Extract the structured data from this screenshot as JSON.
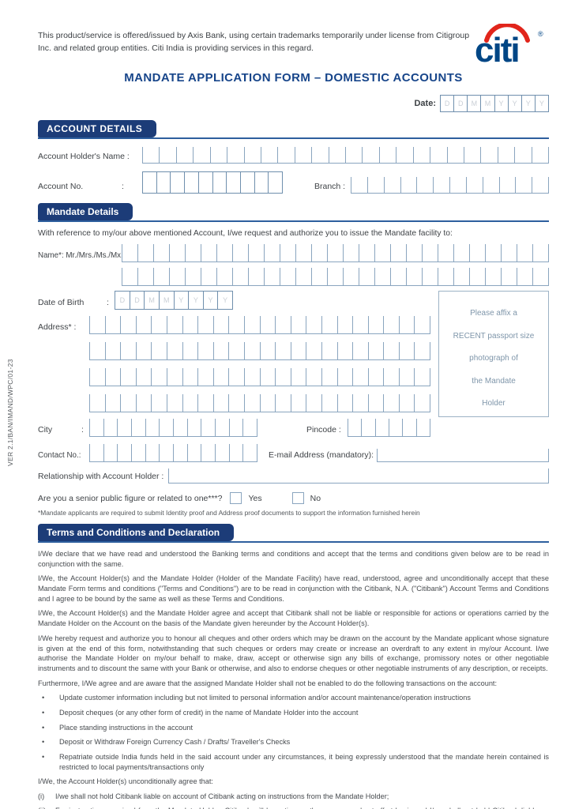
{
  "header": {
    "disclaimer": "This product/service is offered/issued by Axis Bank, using certain trademarks temporarily under license from Citigroup Inc. and related group entities. Citi India is providing services in this regard.",
    "logo": {
      "text": "citi",
      "reg": "®",
      "blue": "#004685",
      "red": "#e1251b"
    },
    "title": "MANDATE APPLICATION FORM – DOMESTIC ACCOUNTS",
    "version": "VER 2.1/BAN/IMAND/WPC/01-23"
  },
  "date": {
    "label": "Date:",
    "letters": [
      "D",
      "D",
      "M",
      "M",
      "Y",
      "Y",
      "Y",
      "Y"
    ]
  },
  "account": {
    "header": "ACCOUNT DETAILS",
    "holder_name_label": "Account Holder's Name :",
    "account_no_label": "Account No.",
    "colon": ":",
    "branch_label": "Branch :"
  },
  "mandate": {
    "header": "Mandate Details",
    "intro": "With reference to my/our above mentioned Account, I/we request and authorize you to issue the Mandate facility to:",
    "name_label": "Name*: Mr./Mrs./Ms./Mx.",
    "dob_label": "Date of Birth",
    "colon": ":",
    "dob_letters": [
      "D",
      "D",
      "M",
      "M",
      "Y",
      "Y",
      "Y",
      "Y"
    ],
    "address_label": "Address* :",
    "photo": [
      "Please affix a",
      "RECENT passport size",
      "photograph of",
      "the Mandate",
      "Holder"
    ],
    "city_label": "City",
    "pincode_label": "Pincode :",
    "contact_label": "Contact No.:",
    "email_label": "E-mail Address (mandatory):",
    "relationship_label": "Relationship with Account Holder :",
    "senior_question": "Are you a senior public figure or related to one***?",
    "yes_label": "Yes",
    "no_label": "No",
    "footnote": "*Mandate applicants are required to submit Identity proof and Address proof documents to support the information furnished herein"
  },
  "terms": {
    "header": "Terms and Conditions and Declaration",
    "paragraphs": [
      "I/We declare that we have read and understood the Banking terms and conditions and accept that the terms and conditions given below are to be read in conjunction with the same.",
      "I/We, the Account Holder(s) and the Mandate Holder (Holder of the Mandate Facility) have read, understood, agree and unconditionally accept that these Mandate Form terms and conditions (\"Terms and Conditions\") are to be read in conjunction with the Citibank, N.A. (\"Citibank\") Account Terms and Conditions and I agree to be bound by the same as well as these Terms and Conditions.",
      "I/We, the Account Holder(s) and the Mandate Holder agree and accept that Citibank shall not be liable or responsible for actions or operations carried by the Mandate Holder on the Account on the basis of the Mandate given hereunder by the Account Holder(s).",
      "I/We hereby request and authorize you to honour all cheques and other orders which may be drawn on the account by the Mandate applicant whose signature is given at the end of this form, notwithstanding that such cheques or orders may create or increase an overdraft to any extent in my/our Account.  I/we authorise the Mandate Holder on my/our behalf to make, draw, accept or otherwise sign any bills of exchange, promissory notes or other negotiable instruments and to discount the same with your Bank or otherwise, and also to endorse cheques or other negotiable instruments of any description, or receipts.",
      "Furthermore, I/We agree and are aware that the assigned Mandate Holder shall not be enabled to do the following transactions on the account:"
    ],
    "bullets": [
      "Update customer information including but not limited to personal information and/or account maintenance/operation instructions",
      "Deposit cheques (or any other form of credit) in the name of Mandate Holder into the account",
      "Place standing instructions in the account",
      "Deposit or Withdraw Foreign Currency Cash / Drafts/ Traveller's Checks",
      "Repatriate outside India funds held in the said account under any circumstances, it being expressly understood that the mandate herein contained is restricted to local payments/transactions only"
    ],
    "agree_intro": "I/We, the Account Holder(s) unconditionally agree that:",
    "items": [
      {
        "num": "(i)",
        "text": "I/we shall not hold Citibank liable on account of Citibank acting on instructions from the Mandate Holder;"
      },
      {
        "num": "(ii)",
        "text": "For instructions received from the Mandate Holder, Citibank will be acting on the same on a best-effort basis and I/we shall not hold Citibank liable on account of any delay or inability on the part of Citibank to act immediately or at all on any of the instructions received from the Mandate Holder;"
      }
    ]
  },
  "colors": {
    "badge_navy": "#1c3c78",
    "rule_blue": "#2e5f9e",
    "field_line": "#8aa5bf",
    "title_blue": "#17458a"
  }
}
